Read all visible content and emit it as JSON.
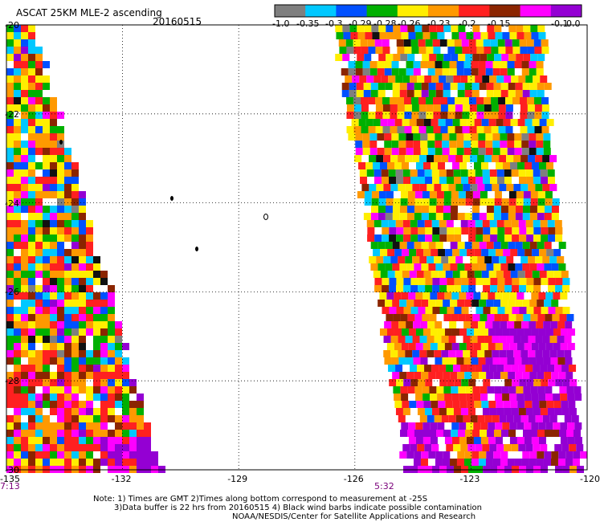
{
  "header": {
    "title": "ASCAT 25KM MLE-2 ascending",
    "date": "20160515"
  },
  "colorbar": {
    "labels": [
      "-1.0",
      "-0.35",
      "-0.3",
      "-0.29",
      "-0.28",
      "-0.26",
      "-0.23",
      "-0.2",
      "-0.15",
      "-0.1",
      "0.0"
    ],
    "colors": [
      "#7f7f7f",
      "#00c8ff",
      "#0050ff",
      "#00b000",
      "#ffee00",
      "#ff9900",
      "#ff2020",
      "#8b2500",
      "#ff00ff",
      "#9400d3"
    ]
  },
  "map": {
    "lat_labels": [
      "-20",
      "-22",
      "-24",
      "-26",
      "-28",
      "-30"
    ],
    "lon_labels": [
      "-135",
      "-132",
      "-129",
      "-126",
      "-123",
      "-120"
    ],
    "lat_range": [
      -30,
      -20
    ],
    "lon_range": [
      -135,
      -120
    ],
    "pass_times": [
      "7:13",
      "5:32"
    ]
  },
  "notes": [
    "Note: 1) Times are GMT 2)Times along bottom correspond to measurement at -25S",
    "3)Data buffer is 22 hrs from 20160515 4) Black wind barbs indicate possible contamination",
    "NOAA/NESDIS/Center for Satellite Applications and Research"
  ]
}
